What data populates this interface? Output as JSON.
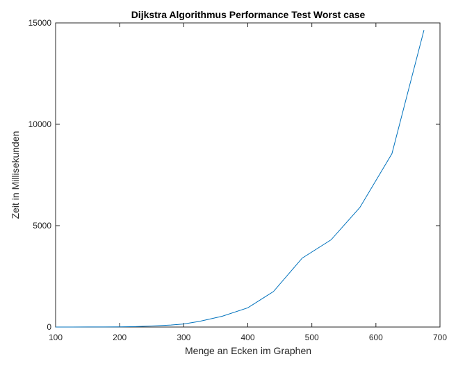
{
  "chart_data": {
    "type": "line",
    "title": "Dijkstra Algorithmus Performance Test Worst case",
    "xlabel": "Menge an Ecken im Graphen",
    "ylabel": "Zeit in Millisekunden",
    "xlim": [
      100,
      700
    ],
    "ylim": [
      0,
      15000
    ],
    "xticks": [
      100,
      200,
      300,
      400,
      500,
      600,
      700
    ],
    "yticks": [
      0,
      5000,
      10000,
      15000
    ],
    "grid": false,
    "legend": "none",
    "series": [
      {
        "color": "#0072bd",
        "x": [
          100,
          125,
          150,
          175,
          200,
          225,
          250,
          280,
          300,
          325,
          360,
          400,
          440,
          485,
          530,
          575,
          625,
          675
        ],
        "y": [
          0,
          0,
          2,
          5,
          10,
          20,
          50,
          100,
          150,
          280,
          530,
          950,
          1750,
          3400,
          4300,
          5900,
          8550,
          14650
        ]
      }
    ]
  }
}
